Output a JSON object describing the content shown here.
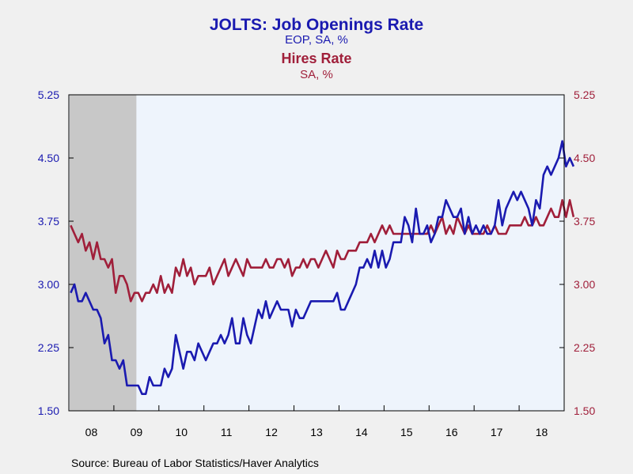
{
  "header": {
    "title": "JOLTS: Job Openings Rate",
    "subtitle": "EOP, SA, %",
    "title2": "Hires Rate",
    "subtitle2": "SA, %"
  },
  "footer": {
    "source": "Source:  Bureau of Labor Statistics/Haver Analytics"
  },
  "colors": {
    "job_openings": "#1a1ab0",
    "hires": "#a01f3a",
    "recession": "#c8c8c8",
    "plot_bg": "#eef4fc"
  },
  "chart_data": {
    "type": "line",
    "title": "JOLTS: Job Openings Rate",
    "subtitle": "EOP, SA, %",
    "x_range": [
      "2008-01",
      "2018-12"
    ],
    "x_tick_labels": [
      "08",
      "09",
      "10",
      "11",
      "12",
      "13",
      "14",
      "15",
      "16",
      "17",
      "18"
    ],
    "ylim_left": [
      1.5,
      5.25
    ],
    "ylim_right": [
      1.5,
      5.25
    ],
    "y_tick_labels": [
      "1.50",
      "2.25",
      "3.00",
      "3.75",
      "4.50",
      "5.25"
    ],
    "grid": false,
    "recession_shading": {
      "start": "2008-01",
      "end": "2009-06"
    },
    "series": [
      {
        "name": "Job Openings Rate",
        "axis": "left",
        "start": "2008-01",
        "values": [
          2.9,
          3.0,
          2.8,
          2.8,
          2.9,
          2.8,
          2.7,
          2.7,
          2.6,
          2.3,
          2.4,
          2.1,
          2.1,
          2.0,
          2.1,
          1.8,
          1.8,
          1.8,
          1.8,
          1.7,
          1.7,
          1.9,
          1.8,
          1.8,
          1.8,
          2.0,
          1.9,
          2.0,
          2.4,
          2.2,
          2.0,
          2.2,
          2.2,
          2.1,
          2.3,
          2.2,
          2.1,
          2.2,
          2.3,
          2.3,
          2.4,
          2.3,
          2.4,
          2.6,
          2.3,
          2.3,
          2.6,
          2.4,
          2.3,
          2.5,
          2.7,
          2.6,
          2.8,
          2.6,
          2.7,
          2.8,
          2.7,
          2.7,
          2.7,
          2.5,
          2.7,
          2.6,
          2.6,
          2.7,
          2.8,
          2.8,
          2.8,
          2.8,
          2.8,
          2.8,
          2.8,
          2.9,
          2.7,
          2.7,
          2.8,
          2.9,
          3.0,
          3.2,
          3.2,
          3.3,
          3.2,
          3.4,
          3.2,
          3.4,
          3.2,
          3.3,
          3.5,
          3.5,
          3.5,
          3.8,
          3.7,
          3.5,
          3.9,
          3.6,
          3.6,
          3.7,
          3.5,
          3.6,
          3.8,
          3.8,
          4.0,
          3.9,
          3.8,
          3.8,
          3.9,
          3.6,
          3.8,
          3.6,
          3.7,
          3.6,
          3.7,
          3.6,
          3.6,
          3.7,
          4.0,
          3.7,
          3.9,
          4.0,
          4.1,
          4.0,
          4.1,
          4.0,
          3.9,
          3.7,
          4.0,
          3.9,
          4.3,
          4.4,
          4.3,
          4.4,
          4.5,
          4.7,
          4.4,
          4.5,
          4.4
        ]
      },
      {
        "name": "Hires Rate",
        "axis": "right",
        "start": "2008-01",
        "values": [
          3.7,
          3.6,
          3.5,
          3.6,
          3.4,
          3.5,
          3.3,
          3.5,
          3.3,
          3.3,
          3.2,
          3.3,
          2.9,
          3.1,
          3.1,
          3.0,
          2.8,
          2.9,
          2.9,
          2.8,
          2.9,
          2.9,
          3.0,
          2.9,
          3.1,
          2.9,
          3.0,
          2.9,
          3.2,
          3.1,
          3.3,
          3.1,
          3.2,
          3.0,
          3.1,
          3.1,
          3.1,
          3.2,
          3.0,
          3.1,
          3.2,
          3.3,
          3.1,
          3.2,
          3.3,
          3.2,
          3.1,
          3.3,
          3.2,
          3.2,
          3.2,
          3.2,
          3.3,
          3.2,
          3.2,
          3.3,
          3.3,
          3.2,
          3.3,
          3.1,
          3.2,
          3.2,
          3.3,
          3.2,
          3.3,
          3.3,
          3.2,
          3.3,
          3.4,
          3.3,
          3.2,
          3.4,
          3.3,
          3.3,
          3.4,
          3.4,
          3.4,
          3.5,
          3.5,
          3.5,
          3.6,
          3.5,
          3.6,
          3.7,
          3.6,
          3.7,
          3.6,
          3.6,
          3.6,
          3.6,
          3.6,
          3.6,
          3.6,
          3.6,
          3.6,
          3.6,
          3.7,
          3.6,
          3.7,
          3.8,
          3.6,
          3.7,
          3.6,
          3.8,
          3.7,
          3.6,
          3.7,
          3.6,
          3.6,
          3.6,
          3.6,
          3.7,
          3.6,
          3.7,
          3.6,
          3.6,
          3.6,
          3.7,
          3.7,
          3.7,
          3.7,
          3.8,
          3.7,
          3.7,
          3.8,
          3.7,
          3.7,
          3.8,
          3.9,
          3.8,
          3.8,
          4.0,
          3.8,
          4.0,
          3.8
        ]
      }
    ]
  }
}
